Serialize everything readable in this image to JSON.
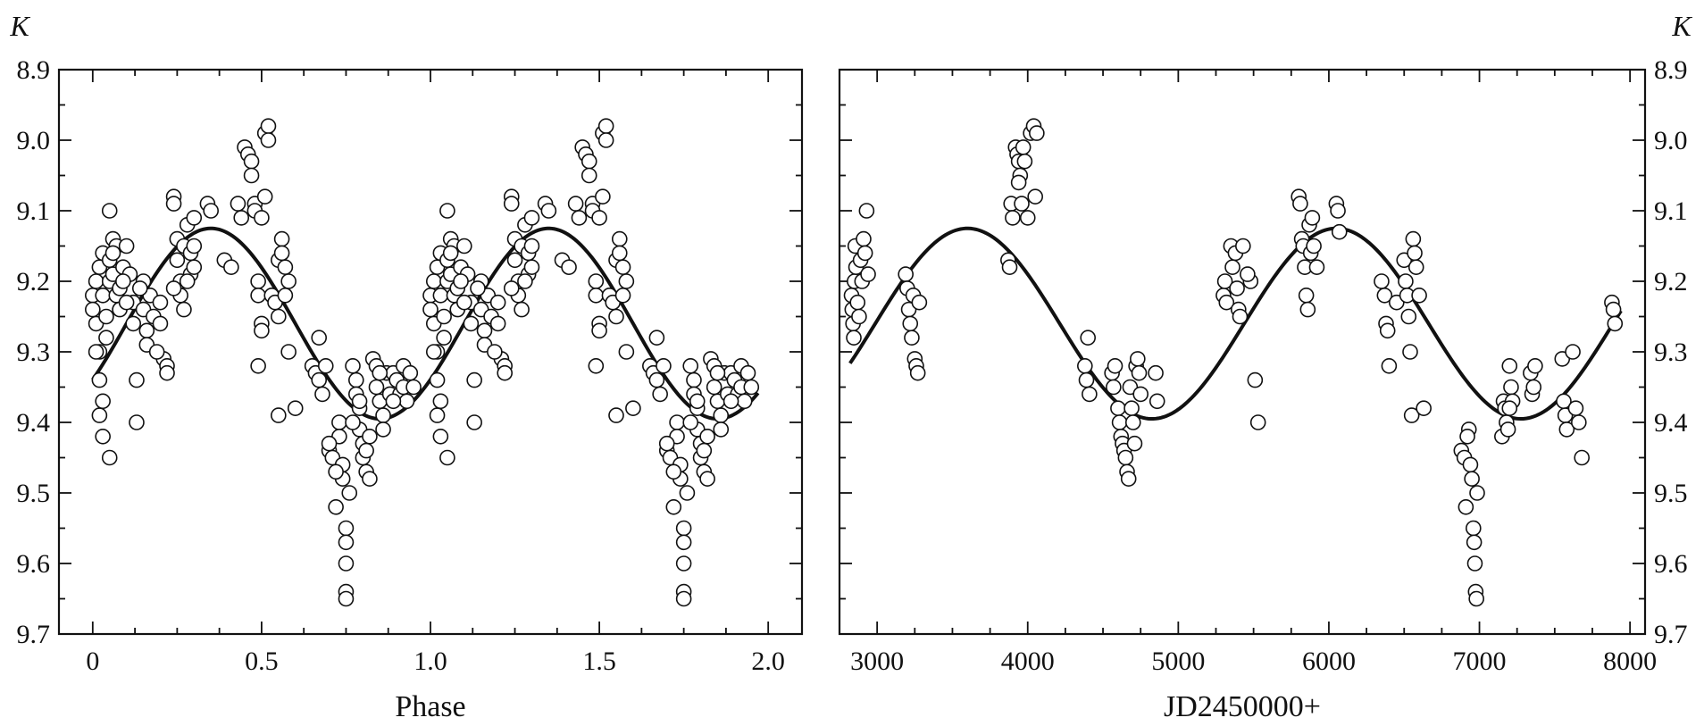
{
  "chart_data": [
    {
      "type": "scatter",
      "xlabel": "Phase",
      "ylabel": "K",
      "xlim": [
        -0.1,
        2.1
      ],
      "ylim": [
        9.7,
        8.9
      ],
      "y_inverted": true,
      "grid": false,
      "xticks": [
        "0",
        "0.5",
        "1.0",
        "1.5",
        "2.0"
      ],
      "xtick_values": [
        0,
        0.5,
        1.0,
        1.5,
        2.0
      ],
      "yticks": [
        "8.9",
        "9.0",
        "9.1",
        "9.2",
        "9.3",
        "9.4",
        "9.5",
        "9.6",
        "9.7"
      ],
      "ytick_values": [
        8.9,
        9.0,
        9.1,
        9.2,
        9.3,
        9.4,
        9.5,
        9.6,
        9.7
      ],
      "fit": {
        "type": "sine",
        "mean": 9.26,
        "amplitude": 0.135,
        "period": 1.0,
        "max_at": 0.35,
        "x_range": [
          0,
          1.97
        ]
      },
      "points": [
        [
          0.0,
          9.22
        ],
        [
          0.0,
          9.24
        ],
        [
          0.01,
          9.26
        ],
        [
          0.01,
          9.2
        ],
        [
          0.02,
          9.3
        ],
        [
          0.02,
          9.18
        ],
        [
          0.03,
          9.16
        ],
        [
          0.03,
          9.22
        ],
        [
          0.04,
          9.25
        ],
        [
          0.04,
          9.28
        ],
        [
          0.05,
          9.17
        ],
        [
          0.05,
          9.2
        ],
        [
          0.06,
          9.19
        ],
        [
          0.06,
          9.14
        ],
        [
          0.07,
          9.15
        ],
        [
          0.07,
          9.22
        ],
        [
          0.08,
          9.21
        ],
        [
          0.08,
          9.24
        ],
        [
          0.09,
          9.18
        ],
        [
          0.1,
          9.15
        ],
        [
          0.02,
          9.34
        ],
        [
          0.03,
          9.37
        ],
        [
          0.02,
          9.39
        ],
        [
          0.03,
          9.42
        ],
        [
          0.05,
          9.45
        ],
        [
          0.05,
          9.1
        ],
        [
          0.11,
          9.19
        ],
        [
          0.12,
          9.23
        ],
        [
          0.12,
          9.26
        ],
        [
          0.13,
          9.34
        ],
        [
          0.13,
          9.4
        ],
        [
          0.15,
          9.2
        ],
        [
          0.15,
          9.24
        ],
        [
          0.16,
          9.27
        ],
        [
          0.16,
          9.29
        ],
        [
          0.17,
          9.22
        ],
        [
          0.18,
          9.25
        ],
        [
          0.2,
          9.23
        ],
        [
          0.2,
          9.26
        ],
        [
          0.21,
          9.31
        ],
        [
          0.22,
          9.32
        ],
        [
          0.22,
          9.33
        ],
        [
          0.24,
          9.08
        ],
        [
          0.24,
          9.09
        ],
        [
          0.25,
          9.14
        ],
        [
          0.25,
          9.17
        ],
        [
          0.26,
          9.2
        ],
        [
          0.26,
          9.22
        ],
        [
          0.27,
          9.24
        ],
        [
          0.27,
          9.15
        ],
        [
          0.28,
          9.12
        ],
        [
          0.29,
          9.16
        ],
        [
          0.29,
          9.19
        ],
        [
          0.3,
          9.11
        ],
        [
          0.3,
          9.15
        ],
        [
          0.3,
          9.18
        ],
        [
          0.34,
          9.09
        ],
        [
          0.35,
          9.1
        ],
        [
          0.39,
          9.17
        ],
        [
          0.41,
          9.18
        ],
        [
          0.43,
          9.09
        ],
        [
          0.44,
          9.11
        ],
        [
          0.45,
          9.01
        ],
        [
          0.46,
          9.02
        ],
        [
          0.47,
          9.03
        ],
        [
          0.47,
          9.05
        ],
        [
          0.48,
          9.09
        ],
        [
          0.48,
          9.1
        ],
        [
          0.49,
          9.2
        ],
        [
          0.49,
          9.22
        ],
        [
          0.5,
          9.26
        ],
        [
          0.5,
          9.27
        ],
        [
          0.49,
          9.32
        ],
        [
          0.51,
          8.99
        ],
        [
          0.52,
          8.98
        ],
        [
          0.51,
          9.08
        ],
        [
          0.53,
          9.22
        ],
        [
          0.54,
          9.23
        ],
        [
          0.55,
          9.25
        ],
        [
          0.55,
          9.17
        ],
        [
          0.56,
          9.14
        ],
        [
          0.56,
          9.16
        ],
        [
          0.57,
          9.18
        ],
        [
          0.57,
          9.22
        ],
        [
          0.58,
          9.3
        ],
        [
          0.55,
          9.39
        ],
        [
          0.6,
          9.38
        ],
        [
          0.65,
          9.32
        ],
        [
          0.66,
          9.33
        ],
        [
          0.67,
          9.28
        ],
        [
          0.67,
          9.34
        ],
        [
          0.68,
          9.36
        ],
        [
          0.7,
          9.44
        ],
        [
          0.71,
          9.45
        ],
        [
          0.72,
          9.52
        ],
        [
          0.73,
          9.4
        ],
        [
          0.73,
          9.42
        ],
        [
          0.74,
          9.46
        ],
        [
          0.74,
          9.48
        ],
        [
          0.75,
          9.55
        ],
        [
          0.75,
          9.57
        ],
        [
          0.75,
          9.6
        ],
        [
          0.75,
          9.64
        ],
        [
          0.75,
          9.65
        ],
        [
          0.76,
          9.5
        ],
        [
          0.77,
          9.32
        ],
        [
          0.78,
          9.34
        ],
        [
          0.78,
          9.36
        ],
        [
          0.79,
          9.38
        ],
        [
          0.79,
          9.41
        ],
        [
          0.8,
          9.43
        ],
        [
          0.8,
          9.45
        ],
        [
          0.81,
          9.44
        ],
        [
          0.81,
          9.47
        ],
        [
          0.82,
          9.48
        ],
        [
          0.82,
          9.42
        ],
        [
          0.83,
          9.31
        ],
        [
          0.84,
          9.32
        ],
        [
          0.84,
          9.35
        ],
        [
          0.85,
          9.37
        ],
        [
          0.86,
          9.39
        ],
        [
          0.86,
          9.41
        ],
        [
          0.87,
          9.33
        ],
        [
          0.88,
          9.36
        ],
        [
          0.89,
          9.33
        ],
        [
          0.9,
          9.34
        ],
        [
          0.91,
          9.36
        ],
        [
          0.92,
          9.32
        ],
        [
          0.92,
          9.35
        ],
        [
          0.93,
          9.37
        ],
        [
          0.01,
          9.3
        ],
        [
          0.06,
          9.16
        ],
        [
          0.09,
          9.2
        ],
        [
          0.1,
          9.23
        ],
        [
          0.14,
          9.21
        ],
        [
          0.19,
          9.3
        ],
        [
          0.24,
          9.21
        ],
        [
          0.28,
          9.2
        ],
        [
          0.5,
          9.11
        ],
        [
          0.52,
          9.0
        ],
        [
          0.58,
          9.2
        ],
        [
          0.69,
          9.32
        ],
        [
          0.77,
          9.4
        ],
        [
          0.85,
          9.33
        ],
        [
          0.89,
          9.37
        ],
        [
          0.79,
          9.37
        ],
        [
          0.7,
          9.43
        ],
        [
          0.72,
          9.47
        ],
        [
          0.94,
          9.33
        ],
        [
          0.95,
          9.35
        ]
      ]
    },
    {
      "type": "scatter",
      "xlabel": "JD2450000+",
      "ylabel": "K",
      "xlim": [
        2750,
        8100
      ],
      "ylim": [
        9.7,
        8.9
      ],
      "y_inverted": true,
      "grid": false,
      "xticks": [
        "3000",
        "4000",
        "5000",
        "6000",
        "7000",
        "8000"
      ],
      "xtick_values": [
        3000,
        4000,
        5000,
        6000,
        7000,
        8000
      ],
      "yticks": [
        "8.9",
        "9.0",
        "9.1",
        "9.2",
        "9.3",
        "9.4",
        "9.5",
        "9.6",
        "9.7"
      ],
      "ytick_values": [
        8.9,
        9.0,
        9.1,
        9.2,
        9.3,
        9.4,
        9.5,
        9.6,
        9.7
      ],
      "fit": {
        "type": "sine",
        "mean": 9.26,
        "amplitude": 0.135,
        "period": 2450,
        "max_at": 3600,
        "x_range": [
          2820,
          7940
        ]
      },
      "points": [
        [
          2830,
          9.22
        ],
        [
          2835,
          9.24
        ],
        [
          2840,
          9.26
        ],
        [
          2845,
          9.28
        ],
        [
          2850,
          9.2
        ],
        [
          2855,
          9.15
        ],
        [
          2860,
          9.18
        ],
        [
          2870,
          9.23
        ],
        [
          2880,
          9.25
        ],
        [
          2890,
          9.17
        ],
        [
          2900,
          9.2
        ],
        [
          2910,
          9.14
        ],
        [
          2920,
          9.16
        ],
        [
          2930,
          9.1
        ],
        [
          2940,
          9.19
        ],
        [
          3190,
          9.19
        ],
        [
          3200,
          9.21
        ],
        [
          3210,
          9.24
        ],
        [
          3220,
          9.26
        ],
        [
          3230,
          9.28
        ],
        [
          3240,
          9.22
        ],
        [
          3250,
          9.31
        ],
        [
          3260,
          9.32
        ],
        [
          3270,
          9.33
        ],
        [
          3280,
          9.23
        ],
        [
          3870,
          9.17
        ],
        [
          3880,
          9.18
        ],
        [
          3890,
          9.09
        ],
        [
          3900,
          9.11
        ],
        [
          3920,
          9.01
        ],
        [
          3930,
          9.02
        ],
        [
          3940,
          9.03
        ],
        [
          3950,
          9.05
        ],
        [
          3960,
          9.09
        ],
        [
          3970,
          9.01
        ],
        [
          3980,
          9.03
        ],
        [
          4000,
          9.11
        ],
        [
          4020,
          8.99
        ],
        [
          4040,
          8.98
        ],
        [
          4050,
          9.08
        ],
        [
          4380,
          9.32
        ],
        [
          4390,
          9.34
        ],
        [
          4400,
          9.28
        ],
        [
          4410,
          9.36
        ],
        [
          4560,
          9.33
        ],
        [
          4570,
          9.35
        ],
        [
          4580,
          9.32
        ],
        [
          4600,
          9.38
        ],
        [
          4610,
          9.4
        ],
        [
          4620,
          9.42
        ],
        [
          4630,
          9.43
        ],
        [
          4640,
          9.44
        ],
        [
          4650,
          9.45
        ],
        [
          4660,
          9.47
        ],
        [
          4670,
          9.48
        ],
        [
          4680,
          9.35
        ],
        [
          4690,
          9.38
        ],
        [
          4700,
          9.4
        ],
        [
          4710,
          9.43
        ],
        [
          4720,
          9.32
        ],
        [
          4730,
          9.31
        ],
        [
          4740,
          9.33
        ],
        [
          4750,
          9.36
        ],
        [
          4850,
          9.33
        ],
        [
          4860,
          9.37
        ],
        [
          5300,
          9.22
        ],
        [
          5310,
          9.2
        ],
        [
          5320,
          9.23
        ],
        [
          5350,
          9.15
        ],
        [
          5360,
          9.18
        ],
        [
          5380,
          9.16
        ],
        [
          5390,
          9.21
        ],
        [
          5400,
          9.24
        ],
        [
          5410,
          9.25
        ],
        [
          5430,
          9.15
        ],
        [
          5480,
          9.2
        ],
        [
          5510,
          9.34
        ],
        [
          5530,
          9.4
        ],
        [
          5800,
          9.08
        ],
        [
          5810,
          9.09
        ],
        [
          5820,
          9.14
        ],
        [
          5830,
          9.15
        ],
        [
          5840,
          9.18
        ],
        [
          5850,
          9.22
        ],
        [
          5860,
          9.24
        ],
        [
          5870,
          9.12
        ],
        [
          5880,
          9.16
        ],
        [
          5890,
          9.11
        ],
        [
          5900,
          9.15
        ],
        [
          5920,
          9.18
        ],
        [
          6050,
          9.09
        ],
        [
          6060,
          9.1
        ],
        [
          6070,
          9.13
        ],
        [
          6350,
          9.2
        ],
        [
          6370,
          9.22
        ],
        [
          6380,
          9.26
        ],
        [
          6390,
          9.27
        ],
        [
          6400,
          9.32
        ],
        [
          6450,
          9.23
        ],
        [
          6500,
          9.17
        ],
        [
          6510,
          9.2
        ],
        [
          6520,
          9.22
        ],
        [
          6530,
          9.25
        ],
        [
          6540,
          9.3
        ],
        [
          6550,
          9.39
        ],
        [
          6560,
          9.14
        ],
        [
          6570,
          9.16
        ],
        [
          6580,
          9.18
        ],
        [
          6600,
          9.22
        ],
        [
          6630,
          9.38
        ],
        [
          6880,
          9.44
        ],
        [
          6900,
          9.45
        ],
        [
          6910,
          9.52
        ],
        [
          6930,
          9.41
        ],
        [
          6940,
          9.46
        ],
        [
          6950,
          9.48
        ],
        [
          6960,
          9.55
        ],
        [
          6965,
          9.57
        ],
        [
          6970,
          9.6
        ],
        [
          6975,
          9.64
        ],
        [
          6980,
          9.65
        ],
        [
          6985,
          9.5
        ],
        [
          7150,
          9.42
        ],
        [
          7160,
          9.37
        ],
        [
          7170,
          9.38
        ],
        [
          7180,
          9.4
        ],
        [
          7190,
          9.41
        ],
        [
          7200,
          9.32
        ],
        [
          7210,
          9.35
        ],
        [
          7220,
          9.37
        ],
        [
          7340,
          9.33
        ],
        [
          7350,
          9.36
        ],
        [
          7360,
          9.35
        ],
        [
          7370,
          9.32
        ],
        [
          7550,
          9.31
        ],
        [
          7560,
          9.37
        ],
        [
          7570,
          9.39
        ],
        [
          7580,
          9.41
        ],
        [
          7620,
          9.3
        ],
        [
          7640,
          9.38
        ],
        [
          7660,
          9.4
        ],
        [
          7680,
          9.45
        ],
        [
          7880,
          9.23
        ],
        [
          7890,
          9.24
        ],
        [
          7900,
          9.26
        ],
        [
          5460,
          9.19
        ],
        [
          4060,
          8.99
        ],
        [
          3940,
          9.06
        ],
        [
          6920,
          9.42
        ],
        [
          7200,
          9.38
        ]
      ]
    }
  ]
}
